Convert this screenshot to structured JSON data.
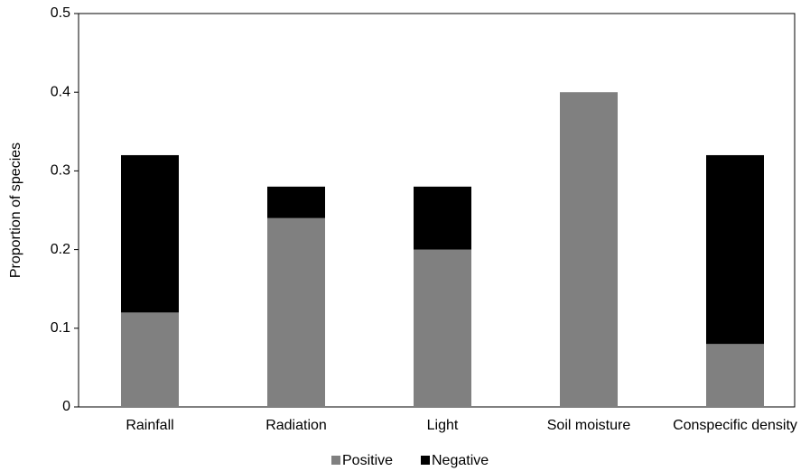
{
  "chart_data": {
    "type": "stacked_bar",
    "y_label": "Proportion of species",
    "categories": [
      "Rainfall",
      "Radiation",
      "Light",
      "Soil moisture",
      "Conspecific density"
    ],
    "series": [
      {
        "name": "Positive",
        "color": "#808080",
        "values": [
          0.12,
          0.24,
          0.2,
          0.4,
          0.08
        ]
      },
      {
        "name": "Negative",
        "color": "#000000",
        "values": [
          0.2,
          0.04,
          0.08,
          0,
          0.24
        ]
      }
    ],
    "ylim": [
      0,
      0.5
    ],
    "yticks": [
      0,
      0.1,
      0.2,
      0.3,
      0.4,
      0.5
    ],
    "legend": "bottom"
  }
}
